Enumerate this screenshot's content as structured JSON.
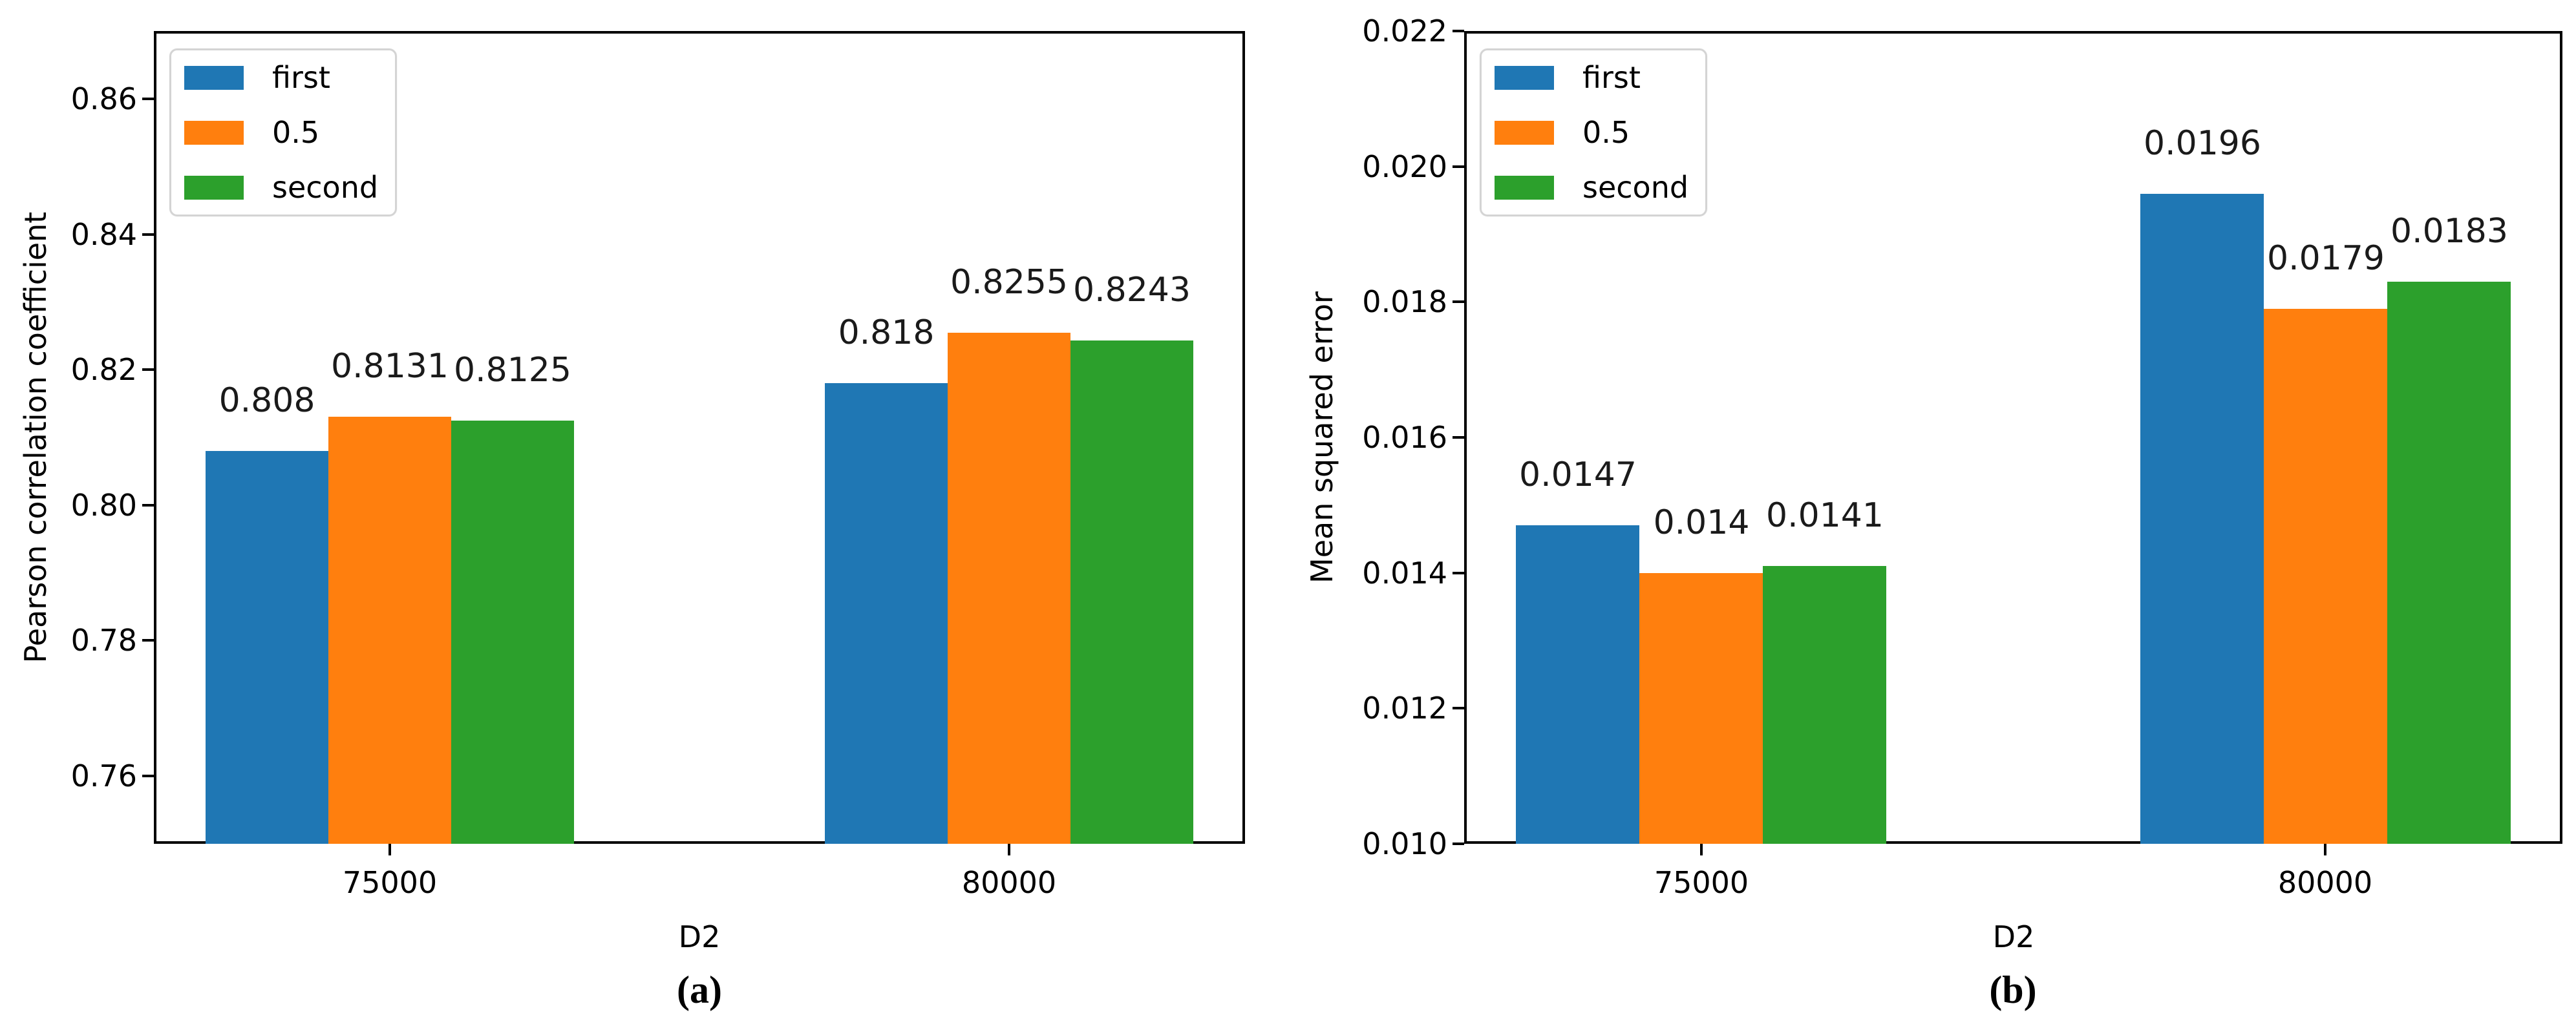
{
  "figure": {
    "background": "#ffffff",
    "axis_color": "#000000",
    "caption_a": "(a)",
    "caption_b": "(b)"
  },
  "chart_data": [
    {
      "id": "a",
      "type": "bar",
      "panel_label": "(a)",
      "xlabel": "D2",
      "ylabel": "Pearson correlation coefficient",
      "categories": [
        "75000",
        "80000"
      ],
      "series": [
        {
          "name": "first",
          "color": "#1f77b4",
          "values": [
            0.808,
            0.818
          ],
          "value_labels": [
            "0.808",
            "0.818"
          ]
        },
        {
          "name": "0.5",
          "color": "#ff7f0e",
          "values": [
            0.8131,
            0.8255
          ],
          "value_labels": [
            "0.8131",
            "0.8255"
          ]
        },
        {
          "name": "second",
          "color": "#2ca02c",
          "values": [
            0.8125,
            0.8243
          ],
          "value_labels": [
            "0.8125",
            "0.8243"
          ]
        }
      ],
      "ylim": [
        0.75,
        0.87
      ],
      "ytick_values": [
        0.76,
        0.78,
        0.8,
        0.82,
        0.84,
        0.86
      ],
      "ytick_labels": [
        "0.76",
        "0.78",
        "0.80",
        "0.82",
        "0.84",
        "0.86"
      ],
      "legend": {
        "position": "upper left",
        "entries": [
          "first",
          "0.5",
          "second"
        ]
      },
      "grid": false
    },
    {
      "id": "b",
      "type": "bar",
      "panel_label": "(b)",
      "xlabel": "D2",
      "ylabel": "Mean squared error",
      "categories": [
        "75000",
        "80000"
      ],
      "series": [
        {
          "name": "first",
          "color": "#1f77b4",
          "values": [
            0.0147,
            0.0196
          ],
          "value_labels": [
            "0.0147",
            "0.0196"
          ]
        },
        {
          "name": "0.5",
          "color": "#ff7f0e",
          "values": [
            0.014,
            0.0179
          ],
          "value_labels": [
            "0.014",
            "0.0179"
          ]
        },
        {
          "name": "second",
          "color": "#2ca02c",
          "values": [
            0.0141,
            0.0183
          ],
          "value_labels": [
            "0.0141",
            "0.0183"
          ]
        }
      ],
      "ylim": [
        0.01,
        0.022
      ],
      "ytick_values": [
        0.01,
        0.012,
        0.014,
        0.016,
        0.018,
        0.02,
        0.022
      ],
      "ytick_labels": [
        "0.010",
        "0.012",
        "0.014",
        "0.016",
        "0.018",
        "0.020",
        "0.022"
      ],
      "legend": {
        "position": "upper left",
        "entries": [
          "first",
          "0.5",
          "second"
        ]
      },
      "grid": false
    }
  ]
}
